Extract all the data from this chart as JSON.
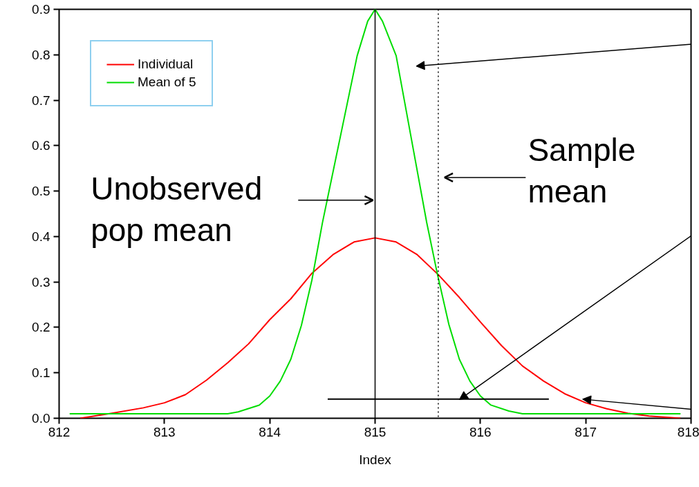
{
  "chart_data": {
    "type": "line",
    "xlabel": "Index",
    "xlim": [
      812,
      818
    ],
    "ylim": [
      0,
      0.9
    ],
    "xticks": [
      812,
      813,
      814,
      815,
      816,
      817,
      818
    ],
    "yticks": [
      {
        "value": 0,
        "label": "0.0"
      },
      0.1,
      0.2,
      0.3,
      0.4,
      0.5,
      0.6,
      0.7,
      0.8,
      0.9
    ],
    "grid": false,
    "legend": "top left",
    "line_style": "solid",
    "marker": "none",
    "series": [
      {
        "name": "Individual",
        "color": "#ff0000",
        "x": [
          812.2,
          812.5,
          812.8,
          813.0,
          813.2,
          813.4,
          813.6,
          813.8,
          814.0,
          814.2,
          814.4,
          814.6,
          814.8,
          815.0,
          815.2,
          815.4,
          815.6,
          815.8,
          816.0,
          816.2,
          816.4,
          816.6,
          816.8,
          817.0,
          817.2,
          817.4,
          817.6,
          817.9
        ],
        "values": [
          0.0,
          0.011,
          0.023,
          0.034,
          0.052,
          0.084,
          0.122,
          0.164,
          0.217,
          0.263,
          0.319,
          0.36,
          0.388,
          0.397,
          0.388,
          0.36,
          0.316,
          0.266,
          0.212,
          0.16,
          0.115,
          0.082,
          0.054,
          0.034,
          0.021,
          0.011,
          0.005,
          0.0
        ]
      },
      {
        "name": "Mean of 5",
        "color": "#00dd00",
        "x": [
          812.1,
          813.6,
          813.7,
          813.9,
          814.0,
          814.1,
          814.2,
          814.3,
          814.4,
          814.5,
          814.83,
          814.93,
          815.0,
          815.07,
          815.2,
          815.49,
          815.59,
          815.7,
          815.8,
          815.9,
          816.0,
          816.1,
          816.27,
          816.4,
          817.9
        ],
        "values": [
          0.01,
          0.01,
          0.014,
          0.029,
          0.049,
          0.082,
          0.13,
          0.204,
          0.304,
          0.43,
          0.798,
          0.874,
          0.9,
          0.874,
          0.798,
          0.431,
          0.319,
          0.207,
          0.13,
          0.082,
          0.049,
          0.029,
          0.016,
          0.01,
          0.01
        ]
      },
      {
        "color": "#000000",
        "x": [
          814.55,
          816.65
        ],
        "values": [
          0.042,
          0.042
        ]
      }
    ],
    "ref_lines": [
      {
        "axis": "x",
        "value": 815,
        "color": "#000000",
        "line_style": "solid"
      },
      {
        "axis": "x",
        "value": 815.6,
        "color": "#000000",
        "line_style": "dotted"
      }
    ],
    "annotations": [
      {
        "text": "Unobserved\npop mean",
        "x": 815,
        "y": 0.48
      },
      {
        "text": "Sample\nmean",
        "x": 815.6,
        "y": 0.53
      }
    ]
  }
}
